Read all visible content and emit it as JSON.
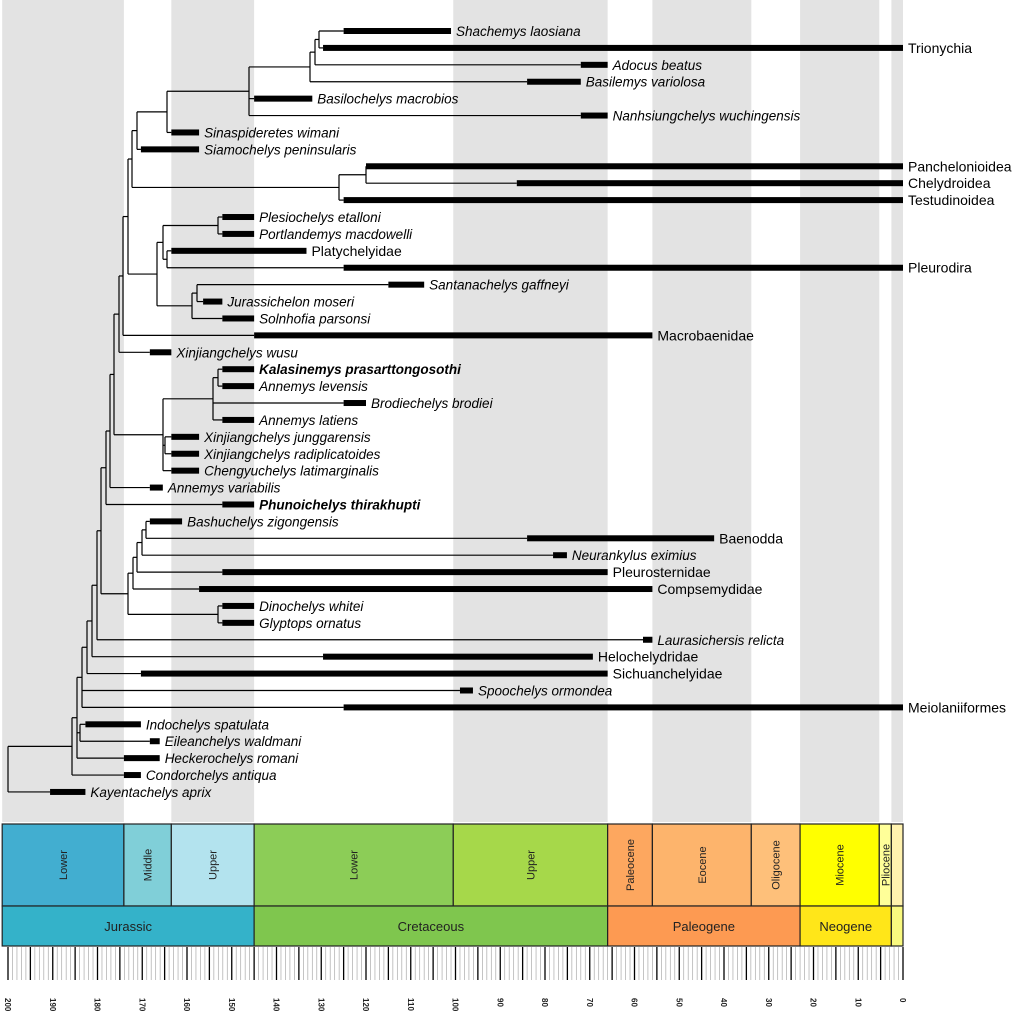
{
  "taxa": [
    {
      "name": "Shachemys laosiana",
      "fad": 125,
      "lad": 101,
      "style": "italic"
    },
    {
      "name": "Trionychia",
      "fad": 129.6,
      "lad": 0,
      "style": "clade"
    },
    {
      "name": "Adocus beatus",
      "fad": 72,
      "lad": 66,
      "style": "italic"
    },
    {
      "name": "Basilemys variolosa",
      "fad": 84,
      "lad": 72,
      "style": "italic"
    },
    {
      "name": "Basilochelys macrobios",
      "fad": 145,
      "lad": 132,
      "style": "italic"
    },
    {
      "name": "Nanhsiungchelys wuchingensis",
      "fad": 72,
      "lad": 66,
      "style": "italic"
    },
    {
      "name": "Sinaspideretes wimani",
      "fad": 163.5,
      "lad": 157.3,
      "style": "italic"
    },
    {
      "name": "Siamochelys peninsularis",
      "fad": 170.3,
      "lad": 157.3,
      "style": "italic"
    },
    {
      "name": "Panchelonioidea",
      "fad": 120,
      "lad": 0,
      "style": "clade"
    },
    {
      "name": "Chelydroidea",
      "fad": 86.3,
      "lad": 0,
      "style": "clade"
    },
    {
      "name": "Testudinoidea",
      "fad": 125,
      "lad": 0,
      "style": "clade"
    },
    {
      "name": "Plesiochelys etalloni",
      "fad": 152.1,
      "lad": 145,
      "style": "italic"
    },
    {
      "name": "Portlandemys macdowelli",
      "fad": 152.1,
      "lad": 145,
      "style": "italic"
    },
    {
      "name": "Platychelyidae",
      "fad": 163.5,
      "lad": 133.3,
      "style": "clade"
    },
    {
      "name": "Pleurodira",
      "fad": 125,
      "lad": 0,
      "style": "clade"
    },
    {
      "name": "Santanachelys gaffneyi",
      "fad": 115,
      "lad": 107,
      "style": "italic"
    },
    {
      "name": "Jurassichelon moseri",
      "fad": 156.4,
      "lad": 152.1,
      "style": "italic"
    },
    {
      "name": "Solnhofia parsonsi",
      "fad": 152.1,
      "lad": 145,
      "style": "italic"
    },
    {
      "name": "Macrobaenidae",
      "fad": 145,
      "lad": 56,
      "style": "clade"
    },
    {
      "name": "Xinjiangchelys wusu",
      "fad": 168.3,
      "lad": 163.5,
      "style": "italic"
    },
    {
      "name": "Kalasinemys prasarttongosothi",
      "fad": 152.1,
      "lad": 145,
      "style": "bold-italic"
    },
    {
      "name": "Annemys levensis",
      "fad": 152.1,
      "lad": 145,
      "style": "italic"
    },
    {
      "name": "Brodiechelys brodiei",
      "fad": 125,
      "lad": 120,
      "style": "italic"
    },
    {
      "name": "Annemys latiens",
      "fad": 152.1,
      "lad": 145,
      "style": "italic"
    },
    {
      "name": "Xinjiangchelys junggarensis",
      "fad": 163.5,
      "lad": 157.3,
      "style": "italic"
    },
    {
      "name": "Xinjiangchelys radiplicatoides",
      "fad": 163.5,
      "lad": 157.3,
      "style": "italic"
    },
    {
      "name": "Chengyuchelys latimarginalis",
      "fad": 163.5,
      "lad": 157.3,
      "style": "italic"
    },
    {
      "name": "Annemys variabilis",
      "fad": 168.3,
      "lad": 165.4,
      "style": "italic"
    },
    {
      "name": "Phunoichelys thirakhupti",
      "fad": 152.1,
      "lad": 145,
      "style": "bold-italic"
    },
    {
      "name": "Bashuchelys zigongensis",
      "fad": 168.3,
      "lad": 161.1,
      "style": "italic"
    },
    {
      "name": "Baenodda",
      "fad": 84,
      "lad": 42.2,
      "style": "clade"
    },
    {
      "name": "Neurankylus eximius",
      "fad": 78.2,
      "lad": 75.1,
      "style": "italic"
    },
    {
      "name": "Pleurosternidae",
      "fad": 152.1,
      "lad": 66,
      "style": "clade"
    },
    {
      "name": "Compsemydidae",
      "fad": 157.3,
      "lad": 56,
      "style": "clade"
    },
    {
      "name": "Dinochelys whitei",
      "fad": 152.1,
      "lad": 145,
      "style": "italic"
    },
    {
      "name": "Glyptops ornatus",
      "fad": 152.1,
      "lad": 145,
      "style": "italic"
    },
    {
      "name": "Laurasichersis relicta",
      "fad": 58.1,
      "lad": 56,
      "style": "italic"
    },
    {
      "name": "Helochelydridae",
      "fad": 129.6,
      "lad": 69.3,
      "style": "clade"
    },
    {
      "name": "Sichuanchelyidae",
      "fad": 170.3,
      "lad": 66,
      "style": "clade"
    },
    {
      "name": "Spoochelys ormondea",
      "fad": 99,
      "lad": 96.1,
      "style": "italic"
    },
    {
      "name": "Meiolaniiformes",
      "fad": 125,
      "lad": 0,
      "style": "clade"
    },
    {
      "name": "Indochelys spatulata",
      "fad": 182.7,
      "lad": 170.3,
      "style": "italic"
    },
    {
      "name": "Eileanchelys waldmani",
      "fad": 168.3,
      "lad": 166.1,
      "style": "italic"
    },
    {
      "name": "Heckerochelys romani",
      "fad": 174.1,
      "lad": 166.1,
      "style": "italic"
    },
    {
      "name": "Condorchelys antiqua",
      "fad": 174.1,
      "lad": 170.3,
      "style": "italic"
    },
    {
      "name": "Kayentachelys aprix",
      "fad": 190.6,
      "lad": 182.7,
      "style": "italic"
    }
  ],
  "timescale": {
    "stages": [
      {
        "name": "Lower",
        "start": 201.3,
        "end": 174.1,
        "color": "#42aed0"
      },
      {
        "name": "Middle",
        "start": 174.1,
        "end": 163.5,
        "color": "#80cfd8"
      },
      {
        "name": "Upper",
        "start": 163.5,
        "end": 145,
        "color": "#b3e3ee"
      },
      {
        "name": "Lower",
        "start": 145,
        "end": 100.5,
        "color": "#8ccd57"
      },
      {
        "name": "Upper",
        "start": 100.5,
        "end": 66,
        "color": "#a6d84a"
      },
      {
        "name": "Paleocene",
        "start": 66,
        "end": 56,
        "color": "#fda75f"
      },
      {
        "name": "Eocene",
        "start": 56,
        "end": 33.9,
        "color": "#fdb46c"
      },
      {
        "name": "Oligocene",
        "start": 33.9,
        "end": 23,
        "color": "#fec07a"
      },
      {
        "name": "Miocene",
        "start": 23,
        "end": 5.3,
        "color": "#ffff00"
      },
      {
        "name": "Pliocene",
        "start": 5.3,
        "end": 2.6,
        "color": "#ffff99"
      },
      {
        "name": "",
        "start": 2.6,
        "end": 0,
        "color": "#fff2ae"
      }
    ],
    "periods": [
      {
        "name": "Jurassic",
        "start": 201.3,
        "end": 145,
        "color": "#34b2c9"
      },
      {
        "name": "Cretaceous",
        "start": 145,
        "end": 66,
        "color": "#7fc64e"
      },
      {
        "name": "Paleogene",
        "start": 66,
        "end": 23,
        "color": "#fd9a52"
      },
      {
        "name": "Neogene",
        "start": 23,
        "end": 2.6,
        "color": "#ffe619"
      },
      {
        "name": "",
        "start": 2.6,
        "end": 0,
        "color": "#f9f97f"
      }
    ],
    "tick_labels": [
      "200",
      "190",
      "180",
      "170",
      "160",
      "150",
      "140",
      "130",
      "120",
      "110",
      "100",
      "90",
      "80",
      "70",
      "60",
      "50",
      "40",
      "30",
      "20",
      "10",
      "0"
    ],
    "band_color": "#e3e3e3"
  }
}
